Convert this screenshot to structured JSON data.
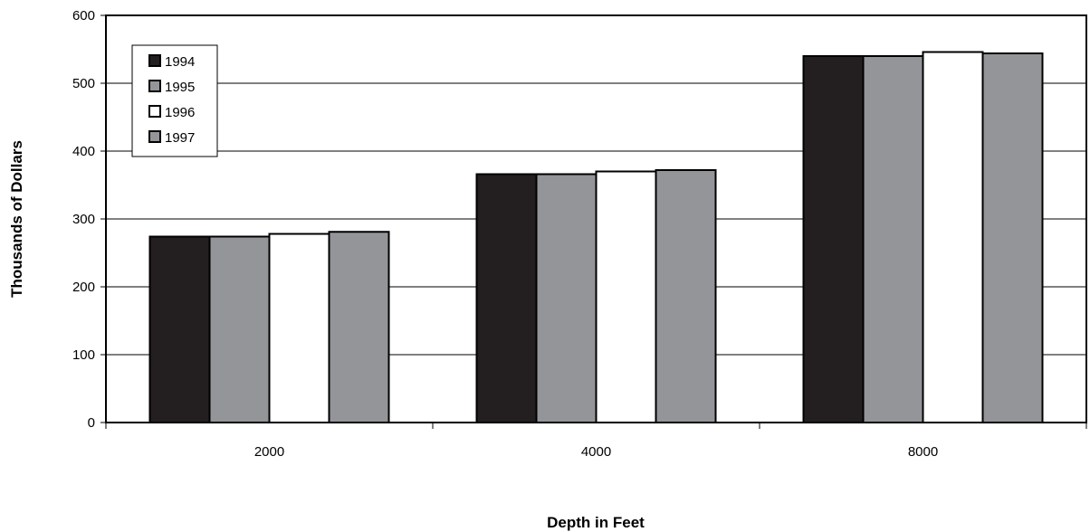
{
  "chart_data": {
    "type": "bar",
    "title": "",
    "xlabel": "Depth in Feet",
    "ylabel": "Thousands of Dollars",
    "categories": [
      "2000",
      "4000",
      "8000"
    ],
    "ylim": [
      0,
      600
    ],
    "yticks": [
      0,
      100,
      200,
      300,
      400,
      500,
      600
    ],
    "grid": true,
    "legend_position": "top-left",
    "series": [
      {
        "name": "1994",
        "color": "#231f20",
        "values": [
          274,
          366,
          540
        ]
      },
      {
        "name": "1995",
        "color": "#939598",
        "values": [
          274,
          366,
          540
        ]
      },
      {
        "name": "1996",
        "color": "#ffffff",
        "values": [
          278,
          370,
          546
        ]
      },
      {
        "name": "1997",
        "color": "#939598",
        "values": [
          281,
          372,
          544
        ]
      }
    ]
  }
}
